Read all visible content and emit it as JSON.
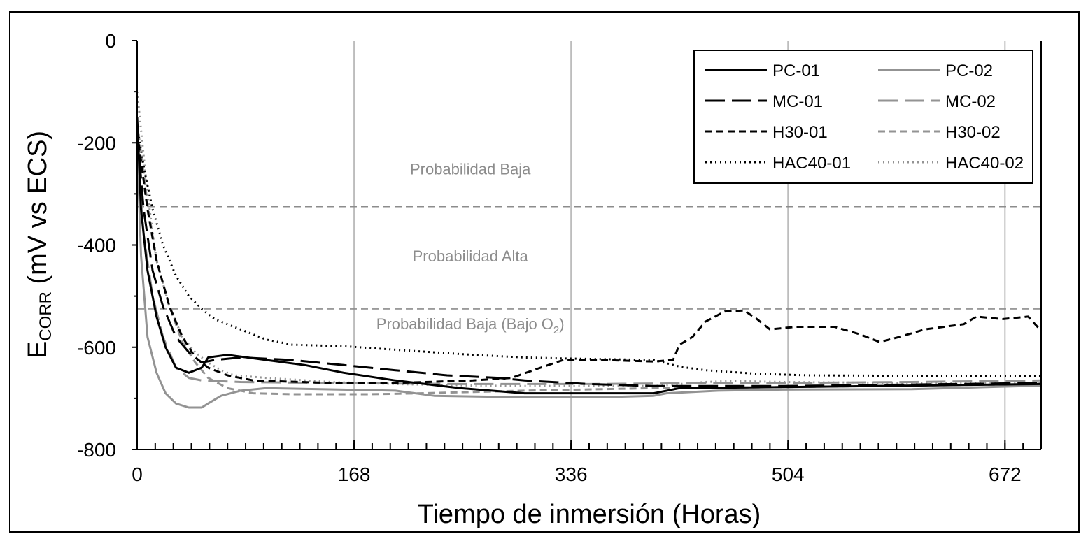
{
  "chart_data": {
    "type": "line",
    "xlabel": "Tiempo de inmersión (Horas)",
    "ylabel_main": "E",
    "ylabel_sub": "CORR",
    "ylabel_rest": " (mV vs ECS)",
    "xlim": [
      0,
      700
    ],
    "ylim": [
      -800,
      0
    ],
    "xticks": [
      0,
      168,
      336,
      504,
      672
    ],
    "yticks": [
      0,
      -200,
      -400,
      -600,
      -800
    ],
    "x_minor_tick_step": 14,
    "vertical_grid": true,
    "legend_position": "top-right",
    "thresholds": [
      {
        "y": -325,
        "style": "dashed"
      },
      {
        "y": -525,
        "style": "dashed"
      }
    ],
    "zone_labels": [
      {
        "text": "Probabilidad Baja",
        "x": 258,
        "y": -262
      },
      {
        "text": "Probabilidad Alta",
        "x": 258,
        "y": -432
      },
      {
        "text": "Probabilidad Baja (Bajo O",
        "sub": "2",
        "close": ")",
        "x": 258,
        "y": -565
      }
    ],
    "series": [
      {
        "name": "PC-01",
        "color": "#000000",
        "dash": "solid",
        "points": [
          [
            0,
            -150
          ],
          [
            3,
            -330
          ],
          [
            8,
            -450
          ],
          [
            15,
            -540
          ],
          [
            22,
            -600
          ],
          [
            30,
            -640
          ],
          [
            40,
            -650
          ],
          [
            50,
            -640
          ],
          [
            55,
            -620
          ],
          [
            70,
            -615
          ],
          [
            100,
            -625
          ],
          [
            130,
            -635
          ],
          [
            160,
            -650
          ],
          [
            200,
            -665
          ],
          [
            250,
            -680
          ],
          [
            300,
            -690
          ],
          [
            350,
            -690
          ],
          [
            400,
            -690
          ],
          [
            420,
            -680
          ],
          [
            500,
            -678
          ],
          [
            600,
            -675
          ],
          [
            700,
            -672
          ]
        ]
      },
      {
        "name": "PC-02",
        "color": "#939393",
        "dash": "solid",
        "points": [
          [
            0,
            -200
          ],
          [
            3,
            -420
          ],
          [
            8,
            -580
          ],
          [
            15,
            -650
          ],
          [
            22,
            -690
          ],
          [
            30,
            -710
          ],
          [
            40,
            -718
          ],
          [
            50,
            -718
          ],
          [
            55,
            -710
          ],
          [
            65,
            -695
          ],
          [
            80,
            -685
          ],
          [
            100,
            -680
          ],
          [
            200,
            -685
          ],
          [
            230,
            -695
          ],
          [
            300,
            -698
          ],
          [
            360,
            -698
          ],
          [
            400,
            -695
          ],
          [
            410,
            -690
          ],
          [
            450,
            -685
          ],
          [
            500,
            -683
          ],
          [
            600,
            -682
          ],
          [
            700,
            -675
          ]
        ]
      },
      {
        "name": "MC-01",
        "color": "#000000",
        "dash": "28,10",
        "points": [
          [
            0,
            -180
          ],
          [
            5,
            -330
          ],
          [
            12,
            -450
          ],
          [
            20,
            -520
          ],
          [
            30,
            -580
          ],
          [
            40,
            -610
          ],
          [
            50,
            -630
          ],
          [
            60,
            -625
          ],
          [
            80,
            -620
          ],
          [
            120,
            -625
          ],
          [
            160,
            -635
          ],
          [
            200,
            -645
          ],
          [
            240,
            -655
          ],
          [
            280,
            -660
          ],
          [
            300,
            -665
          ],
          [
            350,
            -672
          ],
          [
            400,
            -676
          ],
          [
            500,
            -676
          ],
          [
            600,
            -673
          ],
          [
            700,
            -670
          ]
        ]
      },
      {
        "name": "MC-02",
        "color": "#939393",
        "dash": "28,10",
        "points": [
          [
            0,
            -200
          ],
          [
            5,
            -380
          ],
          [
            12,
            -500
          ],
          [
            20,
            -580
          ],
          [
            30,
            -640
          ],
          [
            40,
            -660
          ],
          [
            50,
            -665
          ],
          [
            80,
            -668
          ],
          [
            150,
            -670
          ],
          [
            250,
            -672
          ],
          [
            350,
            -672
          ],
          [
            450,
            -670
          ],
          [
            500,
            -670
          ],
          [
            600,
            -668
          ],
          [
            700,
            -665
          ]
        ]
      },
      {
        "name": "H30-01",
        "color": "#000000",
        "dash": "10,6",
        "points": [
          [
            0,
            -180
          ],
          [
            8,
            -330
          ],
          [
            15,
            -430
          ],
          [
            25,
            -520
          ],
          [
            35,
            -580
          ],
          [
            45,
            -620
          ],
          [
            55,
            -640
          ],
          [
            70,
            -655
          ],
          [
            90,
            -665
          ],
          [
            150,
            -670
          ],
          [
            200,
            -670
          ],
          [
            260,
            -665
          ],
          [
            290,
            -660
          ],
          [
            310,
            -642
          ],
          [
            330,
            -625
          ],
          [
            360,
            -625
          ],
          [
            400,
            -628
          ],
          [
            415,
            -625
          ],
          [
            420,
            -595
          ],
          [
            430,
            -580
          ],
          [
            440,
            -550
          ],
          [
            455,
            -530
          ],
          [
            470,
            -528
          ],
          [
            480,
            -545
          ],
          [
            490,
            -565
          ],
          [
            510,
            -560
          ],
          [
            540,
            -560
          ],
          [
            560,
            -575
          ],
          [
            575,
            -590
          ],
          [
            590,
            -580
          ],
          [
            610,
            -565
          ],
          [
            640,
            -555
          ],
          [
            650,
            -540
          ],
          [
            670,
            -545
          ],
          [
            690,
            -540
          ],
          [
            700,
            -568
          ]
        ]
      },
      {
        "name": "H30-02",
        "color": "#939393",
        "dash": "10,6",
        "points": [
          [
            0,
            -160
          ],
          [
            8,
            -320
          ],
          [
            15,
            -430
          ],
          [
            25,
            -520
          ],
          [
            35,
            -590
          ],
          [
            45,
            -630
          ],
          [
            55,
            -660
          ],
          [
            70,
            -680
          ],
          [
            90,
            -690
          ],
          [
            120,
            -692
          ],
          [
            180,
            -692
          ],
          [
            220,
            -690
          ],
          [
            300,
            -685
          ],
          [
            400,
            -680
          ],
          [
            500,
            -678
          ],
          [
            600,
            -675
          ],
          [
            700,
            -672
          ]
        ]
      },
      {
        "name": "HAC40-01",
        "color": "#000000",
        "dash": "2,5",
        "points": [
          [
            0,
            -170
          ],
          [
            6,
            -260
          ],
          [
            12,
            -330
          ],
          [
            20,
            -400
          ],
          [
            30,
            -460
          ],
          [
            40,
            -500
          ],
          [
            50,
            -525
          ],
          [
            60,
            -545
          ],
          [
            80,
            -565
          ],
          [
            100,
            -585
          ],
          [
            120,
            -595
          ],
          [
            160,
            -598
          ],
          [
            200,
            -605
          ],
          [
            260,
            -615
          ],
          [
            300,
            -620
          ],
          [
            330,
            -622
          ],
          [
            400,
            -625
          ],
          [
            420,
            -638
          ],
          [
            440,
            -645
          ],
          [
            480,
            -652
          ],
          [
            520,
            -655
          ],
          [
            600,
            -656
          ],
          [
            700,
            -656
          ]
        ]
      },
      {
        "name": "HAC40-02",
        "color": "#939393",
        "dash": "2,5",
        "points": [
          [
            0,
            -100
          ],
          [
            8,
            -300
          ],
          [
            15,
            -430
          ],
          [
            25,
            -520
          ],
          [
            35,
            -580
          ],
          [
            45,
            -610
          ],
          [
            55,
            -630
          ],
          [
            65,
            -645
          ],
          [
            75,
            -655
          ],
          [
            100,
            -660
          ],
          [
            150,
            -668
          ],
          [
            200,
            -672
          ],
          [
            260,
            -675
          ],
          [
            300,
            -676
          ],
          [
            400,
            -676
          ],
          [
            420,
            -672
          ],
          [
            440,
            -668
          ],
          [
            460,
            -666
          ],
          [
            500,
            -668
          ],
          [
            600,
            -670
          ],
          [
            700,
            -670
          ]
        ]
      }
    ]
  }
}
